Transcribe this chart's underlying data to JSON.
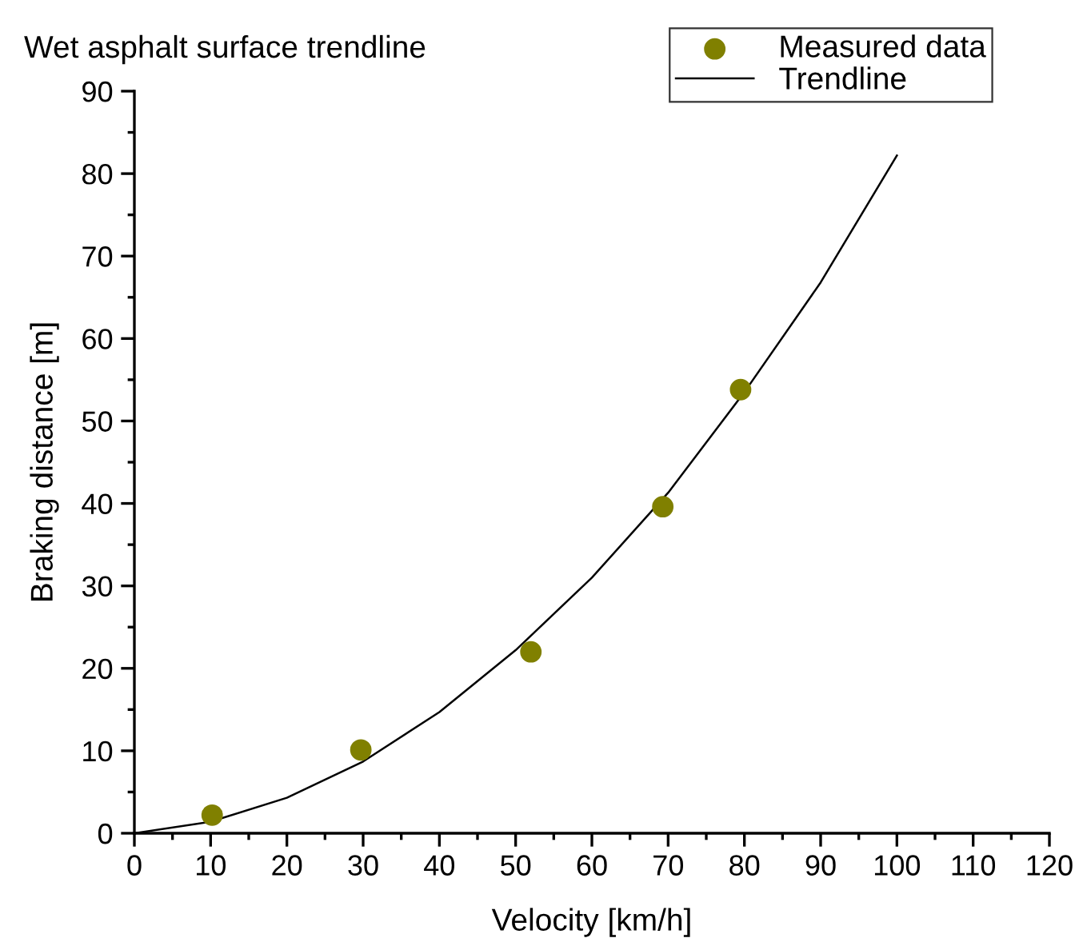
{
  "chart_data": {
    "type": "scatter",
    "title": "Wet asphalt surface trendline",
    "xlabel": "Velocity [km/h]",
    "ylabel": "Braking distance [m]",
    "series": [
      {
        "name": "Measured data",
        "color": "#808000",
        "marker": "circle",
        "x": [
          10.2,
          29.7,
          52,
          69.3,
          79.5
        ],
        "values": [
          2.2,
          10.1,
          22,
          39.6,
          53.8
        ]
      },
      {
        "name": "Trendline",
        "type": "line",
        "color": "#000000",
        "line_style": "solid",
        "x": [
          0,
          10,
          20,
          30,
          40,
          50,
          60,
          70,
          80,
          90,
          100
        ],
        "values": [
          0,
          1.4,
          4.3,
          8.7,
          14.7,
          22.2,
          31,
          41.3,
          53.5,
          66.8,
          82.2
        ]
      }
    ],
    "xlim": [
      0,
      120
    ],
    "xticks": [
      0,
      10,
      20,
      30,
      40,
      50,
      60,
      70,
      80,
      90,
      100,
      110,
      120
    ],
    "ylim": [
      0,
      90
    ],
    "yticks": [
      0,
      10,
      20,
      30,
      40,
      50,
      60,
      70,
      80,
      90
    ],
    "grid": false,
    "legend": "top right"
  }
}
